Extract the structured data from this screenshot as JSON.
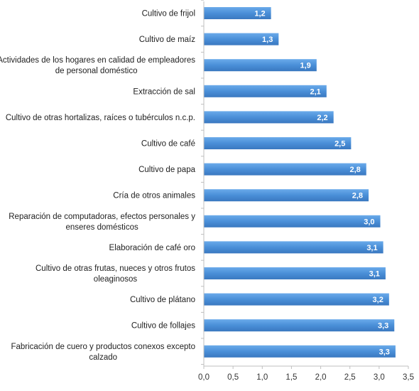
{
  "chart_data": {
    "type": "bar",
    "orientation": "horizontal",
    "categories": [
      "Cultivo de frijol",
      "Cultivo de maíz",
      "Actividades de los hogares en calidad de empleadores de personal doméstico",
      "Extracción de sal",
      "Cultivo de otras hortalizas, raíces o tubérculos n.c.p.",
      "Cultivo de café",
      "Cultivo de papa",
      "Cría de otros animales",
      "Reparación de computadoras, efectos personales y enseres domésticos",
      "Elaboración de café oro",
      "Cultivo de otras frutas, nueces y otros frutos oleaginosos",
      "Cultivo de plátano",
      "Cultivo de follajes",
      "Fabricación de cuero y productos conexos excepto calzado"
    ],
    "category_lines": [
      [
        "Cultivo de frijol"
      ],
      [
        "Cultivo de maíz"
      ],
      [
        "Actividades de los hogares en calidad de empleadores",
        "de personal doméstico"
      ],
      [
        "Extracción de sal"
      ],
      [
        "Cultivo de otras hortalizas, raíces o tubérculos n.c.p."
      ],
      [
        "Cultivo de café"
      ],
      [
        "Cultivo de papa"
      ],
      [
        "Cría de otros animales"
      ],
      [
        "Reparación de computadoras, efectos personales y",
        "enseres domésticos"
      ],
      [
        "Elaboración de café oro"
      ],
      [
        "Cultivo de otras frutas, nueces y otros frutos",
        "oleaginosos"
      ],
      [
        "Cultivo de plátano"
      ],
      [
        "Cultivo de follajes"
      ],
      [
        "Fabricación de cuero y productos conexos excepto",
        "calzado"
      ]
    ],
    "values": [
      1.15,
      1.28,
      1.93,
      2.1,
      2.22,
      2.52,
      2.78,
      2.82,
      3.02,
      3.07,
      3.11,
      3.17,
      3.26,
      3.28
    ],
    "data_labels": [
      "1,2",
      "1,3",
      "1,9",
      "2,1",
      "2,2",
      "2,5",
      "2,8",
      "2,8",
      "3,0",
      "3,1",
      "3,1",
      "3,2",
      "3,3",
      "3,3"
    ],
    "xlim": [
      0,
      3.5
    ],
    "xticks": [
      "0,0",
      "0,5",
      "1,0",
      "1,5",
      "2,0",
      "2,5",
      "3,0",
      "3,5"
    ],
    "grid": false,
    "legend": "none",
    "title": "",
    "xlabel": "",
    "ylabel": "",
    "colors": {
      "bar": "#4a8fd8",
      "bar_top": "#6aaaea",
      "bar_bottom": "#3a78c0",
      "axis": "#bfbfbf"
    }
  }
}
